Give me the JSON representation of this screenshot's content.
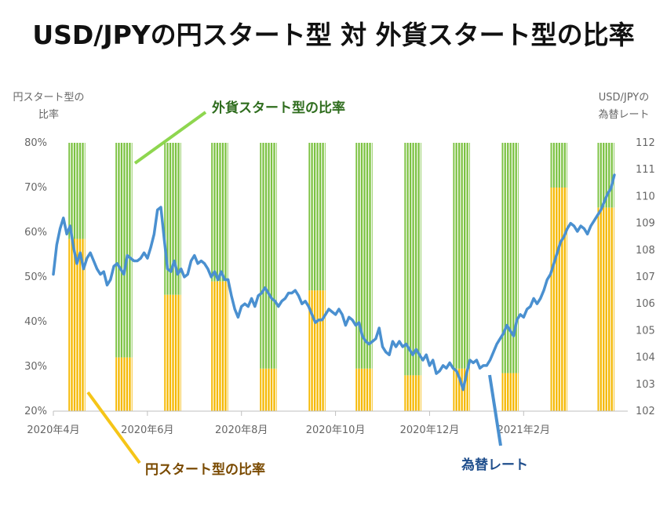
{
  "chart_data": {
    "type": "bar+line",
    "title": "USD/JPYの円スタート型 対 外貨スタート型の比率",
    "left_axis_label": [
      "円スタート型の",
      "比率"
    ],
    "right_axis_label": [
      "USD/JPYの",
      "為替レート"
    ],
    "left_ylim": [
      20,
      80
    ],
    "left_ticks": [
      "80%",
      "70%",
      "60%",
      "50%",
      "40%",
      "30%",
      "20%"
    ],
    "right_ylim": [
      102,
      112
    ],
    "right_ticks": [
      "112",
      "111",
      "110",
      "109",
      "108",
      "107",
      "106",
      "105",
      "104",
      "103",
      "102"
    ],
    "x_tick_labels": [
      "2020年4月",
      "2020年6月",
      "2020年8月",
      "2020年10月",
      "2020年12月",
      "2021年2月"
    ],
    "x_range_days": [
      0,
      342
    ],
    "x_tick_days": [
      0,
      56,
      112,
      168,
      224,
      280
    ],
    "series_bars": {
      "name_yen": "円スタート型の比率",
      "name_foreign": "外貨スタート型の比率",
      "color_yen": "#f5b800",
      "color_foreign": "#7cc242",
      "periods": [
        {
          "start": 9,
          "end": 19,
          "yen": 58.5
        },
        {
          "start": 37,
          "end": 47,
          "yen": 32
        },
        {
          "start": 66,
          "end": 76,
          "yen": 46
        },
        {
          "start": 94,
          "end": 104,
          "yen": 49
        },
        {
          "start": 123,
          "end": 133,
          "yen": 29.5
        },
        {
          "start": 152,
          "end": 162,
          "yen": 47
        },
        {
          "start": 180,
          "end": 190,
          "yen": 29.5
        },
        {
          "start": 209,
          "end": 219,
          "yen": 28
        },
        {
          "start": 238,
          "end": 248,
          "yen": 29.5
        },
        {
          "start": 267,
          "end": 277,
          "yen": 28.5
        },
        {
          "start": 296,
          "end": 306,
          "yen": 70
        },
        {
          "start": 324,
          "end": 334,
          "yen": 65.5
        }
      ]
    },
    "series_line": {
      "name": "為替レート",
      "color": "#4a90d0",
      "points": [
        [
          0,
          107.1
        ],
        [
          2,
          108.2
        ],
        [
          4,
          108.8
        ],
        [
          6,
          109.2
        ],
        [
          8,
          108.6
        ],
        [
          10,
          108.9
        ],
        [
          12,
          108.1
        ],
        [
          14,
          107.5
        ],
        [
          16,
          107.9
        ],
        [
          18,
          107.3
        ],
        [
          20,
          107.7
        ],
        [
          22,
          107.9
        ],
        [
          24,
          107.6
        ],
        [
          26,
          107.3
        ],
        [
          28,
          107.1
        ],
        [
          30,
          107.2
        ],
        [
          32,
          106.7
        ],
        [
          34,
          106.9
        ],
        [
          36,
          107.4
        ],
        [
          38,
          107.5
        ],
        [
          40,
          107.3
        ],
        [
          42,
          107.1
        ],
        [
          44,
          107.8
        ],
        [
          46,
          107.7
        ],
        [
          48,
          107.6
        ],
        [
          50,
          107.6
        ],
        [
          52,
          107.7
        ],
        [
          54,
          107.9
        ],
        [
          56,
          107.7
        ],
        [
          58,
          108.1
        ],
        [
          60,
          108.6
        ],
        [
          62,
          109.5
        ],
        [
          64,
          109.6
        ],
        [
          66,
          108.4
        ],
        [
          68,
          107.3
        ],
        [
          70,
          107.2
        ],
        [
          72,
          107.6
        ],
        [
          74,
          107.1
        ],
        [
          76,
          107.3
        ],
        [
          78,
          107.0
        ],
        [
          80,
          107.1
        ],
        [
          82,
          107.6
        ],
        [
          84,
          107.8
        ],
        [
          86,
          107.5
        ],
        [
          88,
          107.6
        ],
        [
          90,
          107.5
        ],
        [
          92,
          107.3
        ],
        [
          94,
          107.0
        ],
        [
          96,
          107.2
        ],
        [
          98,
          106.9
        ],
        [
          100,
          107.2
        ],
        [
          102,
          106.9
        ],
        [
          104,
          106.9
        ],
        [
          106,
          106.3
        ],
        [
          108,
          105.8
        ],
        [
          110,
          105.5
        ],
        [
          112,
          105.9
        ],
        [
          114,
          106.0
        ],
        [
          116,
          105.9
        ],
        [
          118,
          106.2
        ],
        [
          120,
          105.9
        ],
        [
          122,
          106.3
        ],
        [
          124,
          106.4
        ],
        [
          126,
          106.6
        ],
        [
          128,
          106.4
        ],
        [
          130,
          106.2
        ],
        [
          132,
          106.1
        ],
        [
          134,
          105.9
        ],
        [
          136,
          106.1
        ],
        [
          138,
          106.2
        ],
        [
          140,
          106.4
        ],
        [
          142,
          106.4
        ],
        [
          144,
          106.5
        ],
        [
          146,
          106.3
        ],
        [
          148,
          106.0
        ],
        [
          150,
          106.1
        ],
        [
          152,
          105.9
        ],
        [
          154,
          105.6
        ],
        [
          156,
          105.3
        ],
        [
          158,
          105.4
        ],
        [
          160,
          105.4
        ],
        [
          162,
          105.6
        ],
        [
          164,
          105.8
        ],
        [
          166,
          105.7
        ],
        [
          168,
          105.6
        ],
        [
          170,
          105.8
        ],
        [
          172,
          105.6
        ],
        [
          174,
          105.2
        ],
        [
          176,
          105.5
        ],
        [
          178,
          105.4
        ],
        [
          180,
          105.2
        ],
        [
          182,
          105.3
        ],
        [
          184,
          104.8
        ],
        [
          186,
          104.6
        ],
        [
          188,
          104.5
        ],
        [
          190,
          104.6
        ],
        [
          192,
          104.7
        ],
        [
          194,
          105.1
        ],
        [
          196,
          104.4
        ],
        [
          198,
          104.2
        ],
        [
          200,
          104.1
        ],
        [
          202,
          104.6
        ],
        [
          204,
          104.4
        ],
        [
          206,
          104.6
        ],
        [
          208,
          104.4
        ],
        [
          210,
          104.5
        ],
        [
          212,
          104.3
        ],
        [
          214,
          104.1
        ],
        [
          216,
          104.3
        ],
        [
          218,
          104.1
        ],
        [
          220,
          103.9
        ],
        [
          222,
          104.1
        ],
        [
          224,
          103.7
        ],
        [
          226,
          103.9
        ],
        [
          228,
          103.4
        ],
        [
          230,
          103.5
        ],
        [
          232,
          103.7
        ],
        [
          234,
          103.6
        ],
        [
          236,
          103.8
        ],
        [
          238,
          103.6
        ],
        [
          240,
          103.5
        ],
        [
          242,
          103.2
        ],
        [
          244,
          102.8
        ],
        [
          246,
          103.4
        ],
        [
          248,
          103.9
        ],
        [
          250,
          103.8
        ],
        [
          252,
          103.9
        ],
        [
          254,
          103.6
        ],
        [
          256,
          103.7
        ],
        [
          258,
          103.7
        ],
        [
          260,
          103.9
        ],
        [
          262,
          104.2
        ],
        [
          264,
          104.5
        ],
        [
          266,
          104.7
        ],
        [
          268,
          104.9
        ],
        [
          270,
          105.2
        ],
        [
          272,
          105.0
        ],
        [
          274,
          104.8
        ],
        [
          276,
          105.4
        ],
        [
          278,
          105.6
        ],
        [
          280,
          105.5
        ],
        [
          282,
          105.8
        ],
        [
          284,
          105.9
        ],
        [
          286,
          106.2
        ],
        [
          288,
          106.0
        ],
        [
          290,
          106.2
        ],
        [
          292,
          106.5
        ],
        [
          294,
          106.9
        ],
        [
          296,
          107.1
        ],
        [
          298,
          107.5
        ],
        [
          300,
          107.9
        ],
        [
          302,
          108.3
        ],
        [
          304,
          108.5
        ],
        [
          306,
          108.8
        ],
        [
          308,
          109.0
        ],
        [
          310,
          108.9
        ],
        [
          312,
          108.7
        ],
        [
          314,
          108.9
        ],
        [
          316,
          108.8
        ],
        [
          318,
          108.6
        ],
        [
          320,
          108.9
        ],
        [
          322,
          109.1
        ],
        [
          324,
          109.3
        ],
        [
          326,
          109.5
        ],
        [
          328,
          109.8
        ],
        [
          330,
          110.1
        ],
        [
          332,
          110.3
        ],
        [
          334,
          110.8
        ]
      ]
    },
    "callouts": {
      "foreign": "外貨スタート型の比率",
      "yen": "円スタート型の比率",
      "rate": "為替レート"
    }
  }
}
